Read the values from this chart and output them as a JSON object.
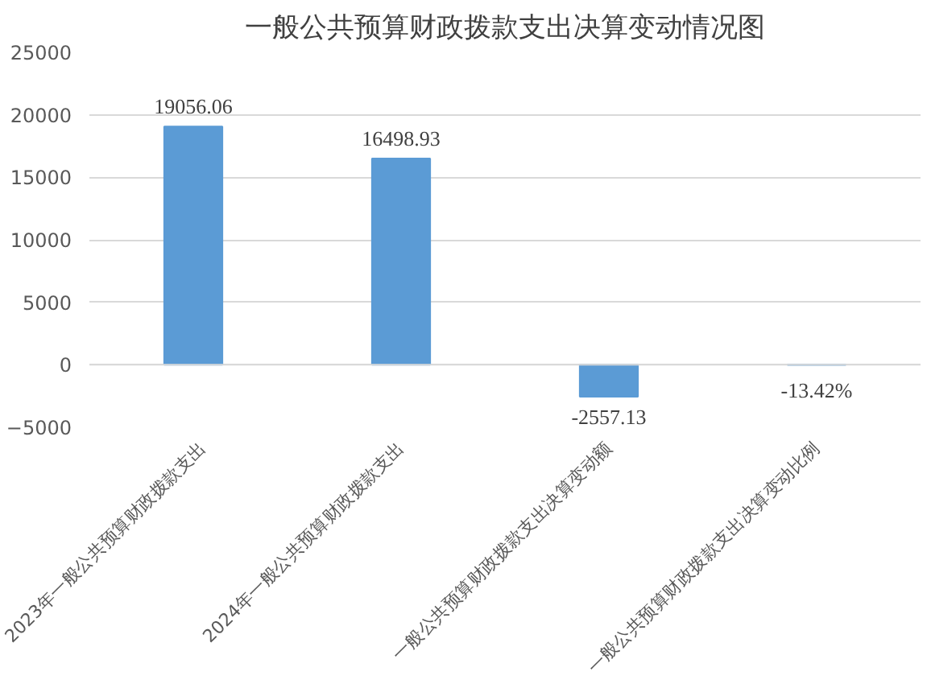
{
  "chart_data": {
    "type": "bar",
    "title": "一般公共预算财政拨款支出决算变动情况图",
    "categories": [
      "2023年一般公共预算财政拨款支出",
      "2024年一般公共预算财政拨款支出",
      "一般公共预算财政拨款支出决算变动额",
      "一般公共预算财政拨款支出决算变动比例"
    ],
    "values": [
      19056.06,
      16498.93,
      -2557.13,
      -13.42
    ],
    "value_labels": [
      "19056.06",
      "16498.93",
      "-2557.13",
      "-13.42%"
    ],
    "color": "#5b9bd5",
    "ylim": [
      -5000,
      25000
    ],
    "yticks": [
      -5000,
      0,
      5000,
      10000,
      15000,
      20000,
      25000
    ],
    "grid": "y"
  }
}
